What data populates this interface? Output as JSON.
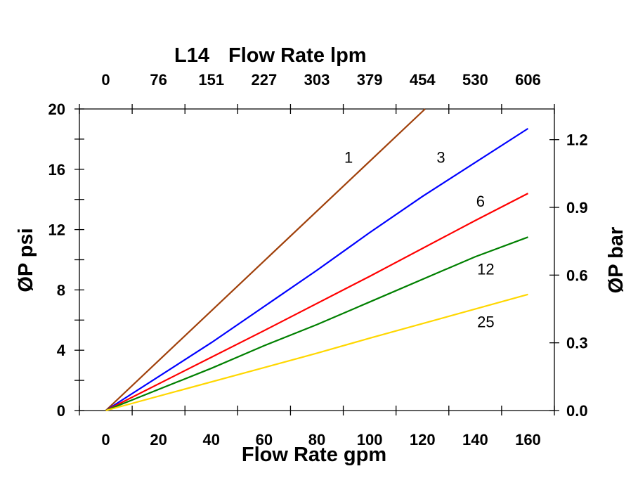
{
  "chart_data": {
    "type": "line",
    "title": "L14",
    "xlabel": "Flow Rate gpm",
    "x2label": "Flow Rate lpm",
    "ylabel": "ØP psi",
    "y2label": "ØP bar",
    "xlim": [
      -10,
      170
    ],
    "ylim": [
      0,
      20
    ],
    "xticks": [
      0,
      20,
      40,
      60,
      80,
      100,
      120,
      140,
      160
    ],
    "x2ticks": [
      "0",
      "76",
      "151",
      "227",
      "303",
      "379",
      "454",
      "530",
      "606"
    ],
    "yticks": [
      0,
      4,
      8,
      12,
      16,
      20
    ],
    "y2ticks": [
      "0.0",
      "0.3",
      "0.6",
      "0.9",
      "1.2"
    ],
    "grid": false,
    "series": [
      {
        "name": "1",
        "color": "#A0400A",
        "points": [
          [
            0,
            0
          ],
          [
            121,
            20
          ]
        ],
        "label_at": [
          92,
          16.8
        ]
      },
      {
        "name": "3",
        "color": "#0000FF",
        "points": [
          [
            0,
            0
          ],
          [
            40,
            4.5
          ],
          [
            80,
            9.3
          ],
          [
            100,
            11.8
          ],
          [
            120,
            14.2
          ],
          [
            160,
            18.7
          ]
        ],
        "label_at": [
          127,
          16.8
        ]
      },
      {
        "name": "6",
        "color": "#FF0000",
        "points": [
          [
            0,
            0
          ],
          [
            60,
            5.3
          ],
          [
            100,
            8.9
          ],
          [
            140,
            12.6
          ],
          [
            160,
            14.4
          ]
        ],
        "label_at": [
          142,
          13.9
        ]
      },
      {
        "name": "12",
        "color": "#008000",
        "points": [
          [
            0,
            0
          ],
          [
            40,
            2.8
          ],
          [
            60,
            4.3
          ],
          [
            80,
            5.7
          ],
          [
            100,
            7.2
          ],
          [
            140,
            10.2
          ],
          [
            160,
            11.5
          ]
        ],
        "label_at": [
          144,
          9.4
        ]
      },
      {
        "name": "25",
        "color": "#FFD700",
        "points": [
          [
            0,
            0
          ],
          [
            80,
            3.8
          ],
          [
            100,
            4.8
          ],
          [
            160,
            7.7
          ]
        ],
        "label_at": [
          144,
          5.9
        ]
      }
    ]
  }
}
